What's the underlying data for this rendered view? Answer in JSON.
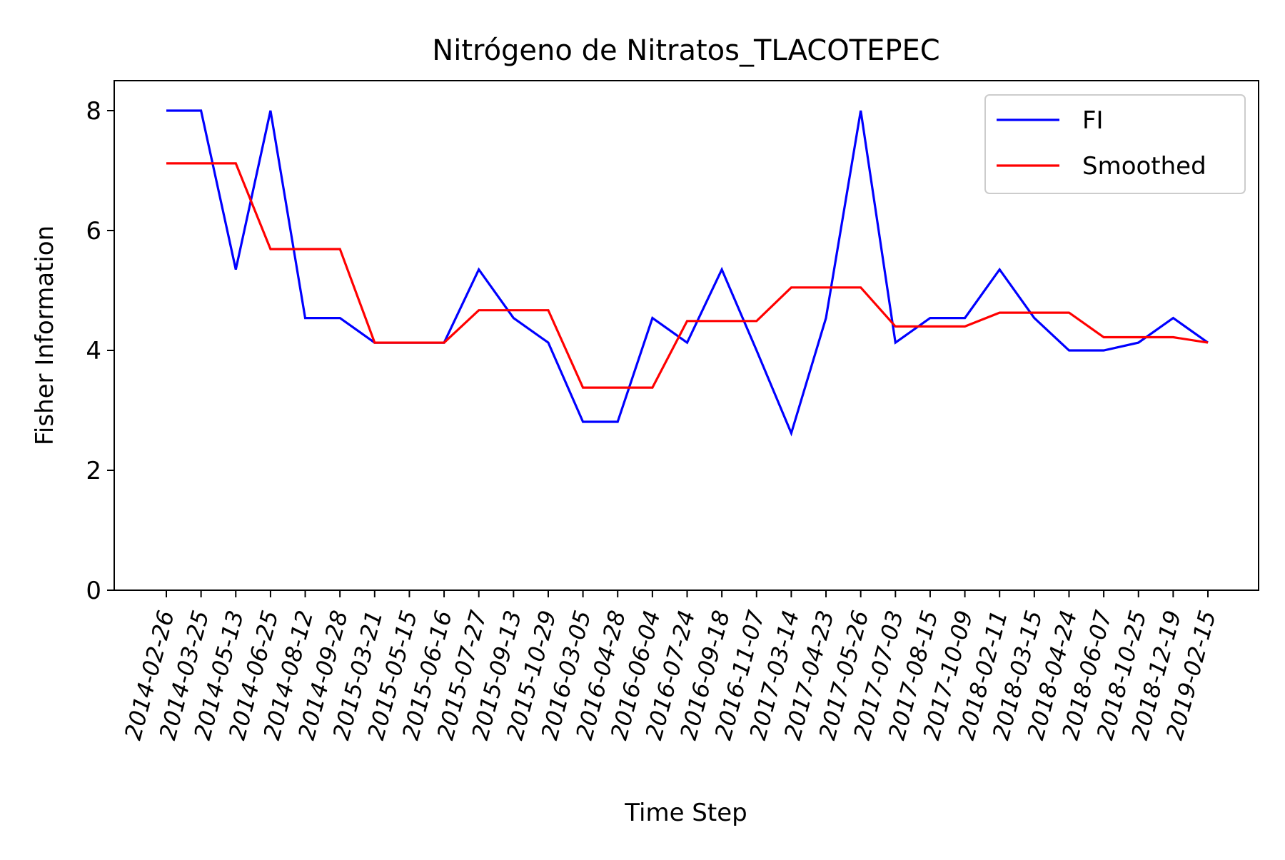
{
  "chart_data": {
    "type": "line",
    "title": "Nitrógeno de Nitratos_TLACOTEPEC",
    "xlabel": "Time Step",
    "ylabel": "Fisher Information",
    "categories": [
      "2014-02-26",
      "2014-03-25",
      "2014-05-13",
      "2014-06-25",
      "2014-08-12",
      "2014-09-28",
      "2015-03-21",
      "2015-05-15",
      "2015-06-16",
      "2015-07-27",
      "2015-09-13",
      "2015-10-29",
      "2016-03-05",
      "2016-04-28",
      "2016-06-04",
      "2016-07-24",
      "2016-09-18",
      "2016-11-07",
      "2017-03-14",
      "2017-04-23",
      "2017-05-26",
      "2017-07-03",
      "2017-08-15",
      "2017-10-09",
      "2018-02-11",
      "2018-03-15",
      "2018-04-24",
      "2018-06-07",
      "2018-10-25",
      "2018-12-19",
      "2019-02-15"
    ],
    "series": [
      {
        "name": "FI",
        "color": "#0000ff",
        "values": [
          8.0,
          8.0,
          5.35,
          8.0,
          4.54,
          4.54,
          4.13,
          4.13,
          4.13,
          5.35,
          4.54,
          4.13,
          2.81,
          2.81,
          4.54,
          4.13,
          5.35,
          4.0,
          2.62,
          4.54,
          8.0,
          4.13,
          4.54,
          4.54,
          5.35,
          4.54,
          4.0,
          4.0,
          4.13,
          4.54,
          4.13
        ]
      },
      {
        "name": "Smoothed",
        "color": "#ff0000",
        "values": [
          7.12,
          7.12,
          7.12,
          5.69,
          5.69,
          5.69,
          4.13,
          4.13,
          4.13,
          4.67,
          4.67,
          4.67,
          3.38,
          3.38,
          3.38,
          4.49,
          4.49,
          4.49,
          5.05,
          5.05,
          5.05,
          4.4,
          4.4,
          4.4,
          4.63,
          4.63,
          4.63,
          4.22,
          4.22,
          4.22,
          4.13
        ]
      }
    ],
    "ylim": [
      0,
      8.5
    ],
    "yticks": [
      0,
      2,
      4,
      6,
      8
    ],
    "grid": false,
    "legend_position": "upper right"
  }
}
